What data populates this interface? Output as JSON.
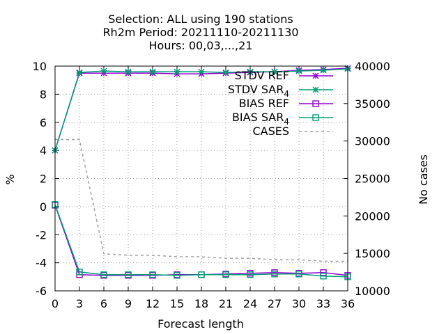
{
  "chart_data": {
    "type": "line",
    "title_lines": [
      "Selection: ALL using   190 stations",
      "Rh2m   Period: 20211110-20211130",
      "Hours:  00,03,...,21"
    ],
    "xlabel": "Forecast length",
    "ylabel": "%",
    "y2label": "No cases",
    "xlim": [
      0,
      36
    ],
    "ylim": [
      -6,
      10
    ],
    "y2lim": [
      10000,
      40000
    ],
    "x_ticks": [
      0,
      3,
      6,
      9,
      12,
      15,
      18,
      21,
      24,
      27,
      30,
      33,
      36
    ],
    "y_ticks": [
      -6,
      -4,
      -2,
      0,
      2,
      4,
      6,
      8,
      10
    ],
    "y2_ticks": [
      10000,
      15000,
      20000,
      25000,
      30000,
      35000,
      40000
    ],
    "grid": true,
    "legend_position": "top-right",
    "x": [
      0,
      3,
      6,
      9,
      12,
      15,
      18,
      21,
      24,
      27,
      30,
      33,
      36
    ],
    "series": [
      {
        "name": "STDV REF",
        "sub": "",
        "axis": "left",
        "color": "#9400d3",
        "marker": "star",
        "dash": false,
        "values": [
          4.0,
          9.5,
          9.5,
          9.5,
          9.5,
          9.45,
          9.45,
          9.5,
          9.55,
          9.6,
          9.7,
          9.75,
          9.85
        ]
      },
      {
        "name": "STDV SAR",
        "sub": "4",
        "axis": "left",
        "color": "#009e73",
        "marker": "star",
        "dash": false,
        "values": [
          4.0,
          9.55,
          9.65,
          9.6,
          9.6,
          9.6,
          9.6,
          9.55,
          9.6,
          9.6,
          9.65,
          9.7,
          9.8
        ]
      },
      {
        "name": "BIAS REF",
        "sub": "",
        "axis": "left",
        "color": "#9400d3",
        "marker": "square",
        "dash": false,
        "values": [
          0.1,
          -4.85,
          -4.9,
          -4.9,
          -4.9,
          -4.85,
          -4.85,
          -4.8,
          -4.75,
          -4.7,
          -4.75,
          -4.7,
          -4.9
        ]
      },
      {
        "name": "BIAS SAR",
        "sub": "4",
        "axis": "left",
        "color": "#009e73",
        "marker": "square",
        "dash": false,
        "values": [
          0.15,
          -4.65,
          -4.85,
          -4.85,
          -4.85,
          -4.9,
          -4.85,
          -4.85,
          -4.85,
          -4.8,
          -4.8,
          -4.95,
          -5.0
        ]
      },
      {
        "name": "CASES",
        "sub": "",
        "axis": "right",
        "color": "#a0a0a0",
        "marker": "none",
        "dash": true,
        "values": [
          30200,
          30200,
          14950,
          14750,
          14750,
          14550,
          14550,
          14350,
          14350,
          14150,
          14150,
          13950,
          13950
        ]
      }
    ]
  }
}
